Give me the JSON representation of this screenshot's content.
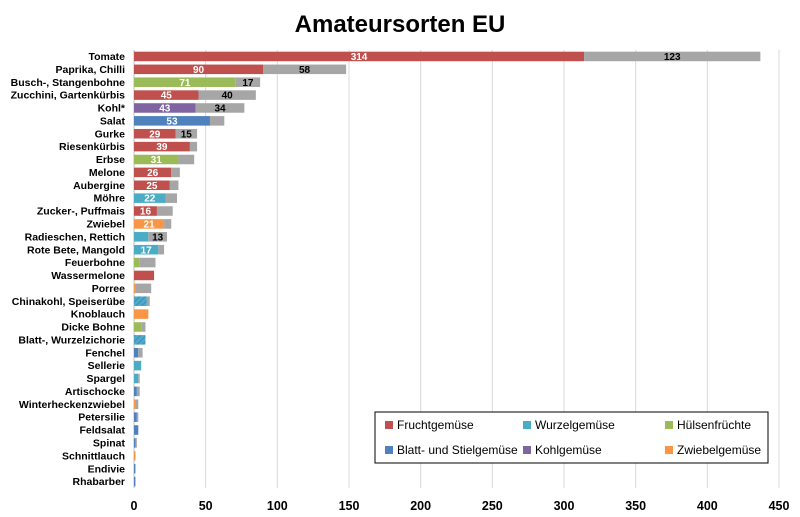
{
  "chart_data": {
    "type": "bar",
    "orientation": "horizontal",
    "stacked": true,
    "title": "Amateursorten EU",
    "xlim": [
      0,
      450
    ],
    "x_ticks": [
      0,
      50,
      100,
      150,
      200,
      250,
      300,
      350,
      400,
      450
    ],
    "grid": "vertical",
    "legend": {
      "position": "bottom-right",
      "entries": [
        {
          "name": "Fruchtgemüse",
          "color": "#c0504d"
        },
        {
          "name": "Wurzelgemüse",
          "color": "#4bacc6"
        },
        {
          "name": "Hülsenfrüchte",
          "color": "#9bbb59"
        },
        {
          "name": "Blatt- und Stielgemüse",
          "color": "#4f81bd"
        },
        {
          "name": "Kohlgemüse",
          "color": "#8064a2"
        },
        {
          "name": "Zwiebelgemüse",
          "color": "#f79646"
        }
      ]
    },
    "remainder_color": "#a6a6a6",
    "categories": [
      {
        "name": "Tomate",
        "group": "Fruchtgemüse",
        "value": 314,
        "remainder": 123,
        "label": "314",
        "remainder_label": "123"
      },
      {
        "name": "Paprika, Chilli",
        "group": "Fruchtgemüse",
        "value": 90,
        "remainder": 58,
        "label": "90",
        "remainder_label": "58"
      },
      {
        "name": "Busch-, Stangenbohne",
        "group": "Hülsenfrüchte",
        "value": 71,
        "remainder": 17,
        "label": "71",
        "remainder_label": "17"
      },
      {
        "name": "Zucchini, Gartenkürbis",
        "group": "Fruchtgemüse",
        "value": 45,
        "remainder": 40,
        "label": "45",
        "remainder_label": "40"
      },
      {
        "name": "Kohl*",
        "group": "Kohlgemüse",
        "value": 43,
        "remainder": 34,
        "label": "43",
        "remainder_label": "34"
      },
      {
        "name": "Salat",
        "group": "Blatt- und Stielgemüse",
        "value": 53,
        "remainder": 10,
        "label": "53",
        "remainder_label": ""
      },
      {
        "name": "Gurke",
        "group": "Fruchtgemüse",
        "value": 29,
        "remainder": 15,
        "label": "29",
        "remainder_label": "15"
      },
      {
        "name": "Riesenkürbis",
        "group": "Fruchtgemüse",
        "value": 39,
        "remainder": 5,
        "label": "39",
        "remainder_label": ""
      },
      {
        "name": "Erbse",
        "group": "Hülsenfrüchte",
        "value": 31,
        "remainder": 11,
        "label": "31",
        "remainder_label": ""
      },
      {
        "name": "Melone",
        "group": "Fruchtgemüse",
        "value": 26,
        "remainder": 6,
        "label": "26",
        "remainder_label": ""
      },
      {
        "name": "Aubergine",
        "group": "Fruchtgemüse",
        "value": 25,
        "remainder": 6,
        "label": "25",
        "remainder_label": ""
      },
      {
        "name": "Möhre",
        "group": "Wurzelgemüse",
        "value": 22,
        "remainder": 8,
        "label": "22",
        "remainder_label": ""
      },
      {
        "name": "Zucker-, Puffmais",
        "group": "Fruchtgemüse",
        "value": 16,
        "remainder": 11,
        "label": "16",
        "remainder_label": ""
      },
      {
        "name": "Zwiebel",
        "group": "Zwiebelgemüse",
        "value": 21,
        "remainder": 5,
        "label": "21",
        "remainder_label": ""
      },
      {
        "name": "Radieschen, Rettich",
        "group": "Wurzelgemüse",
        "value": 10,
        "remainder": 13,
        "label": "",
        "remainder_label": "13"
      },
      {
        "name": "Rote Bete, Mangold",
        "group": "Wurzelgemüse",
        "value": 17,
        "remainder": 4,
        "label": "17",
        "remainder_label": ""
      },
      {
        "name": "Feuerbohne",
        "group": "Hülsenfrüchte",
        "value": 4,
        "remainder": 11,
        "label": "",
        "remainder_label": ""
      },
      {
        "name": "Wassermelone",
        "group": "Fruchtgemüse",
        "value": 14,
        "remainder": 0,
        "label": "",
        "remainder_label": ""
      },
      {
        "name": "Porree",
        "group": "Zwiebelgemüse",
        "value": 1,
        "remainder": 11,
        "label": "",
        "remainder_label": ""
      },
      {
        "name": "Chinakohl, Speiserübe",
        "group": "Wurzelgemüse",
        "value": 9,
        "remainder": 2,
        "label": "",
        "remainder_label": ""
      },
      {
        "name": "Knoblauch",
        "group": "Zwiebelgemüse",
        "value": 10,
        "remainder": 0,
        "label": "",
        "remainder_label": ""
      },
      {
        "name": "Dicke Bohne",
        "group": "Hülsenfrüchte",
        "value": 5,
        "remainder": 3,
        "label": "",
        "remainder_label": ""
      },
      {
        "name": "Blatt-, Wurzelzichorie",
        "group": "Wurzelgemüse",
        "value": 8,
        "remainder": 0,
        "label": "",
        "remainder_label": ""
      },
      {
        "name": "Fenchel",
        "group": "Blatt- und Stielgemüse",
        "value": 3,
        "remainder": 3,
        "label": "",
        "remainder_label": ""
      },
      {
        "name": "Sellerie",
        "group": "Wurzelgemüse",
        "value": 5,
        "remainder": 0,
        "label": "",
        "remainder_label": ""
      },
      {
        "name": "Spargel",
        "group": "Wurzelgemüse",
        "value": 3,
        "remainder": 1,
        "label": "",
        "remainder_label": ""
      },
      {
        "name": "Artischocke",
        "group": "Blatt- und Stielgemüse",
        "value": 2,
        "remainder": 2,
        "label": "",
        "remainder_label": ""
      },
      {
        "name": "Winterheckenzwiebel",
        "group": "Zwiebelgemüse",
        "value": 1,
        "remainder": 2,
        "label": "",
        "remainder_label": ""
      },
      {
        "name": "Petersilie",
        "group": "Blatt- und Stielgemüse",
        "value": 2,
        "remainder": 1,
        "label": "",
        "remainder_label": ""
      },
      {
        "name": "Feldsalat",
        "group": "Blatt- und Stielgemüse",
        "value": 3,
        "remainder": 0,
        "label": "",
        "remainder_label": ""
      },
      {
        "name": "Spinat",
        "group": "Blatt- und Stielgemüse",
        "value": 1,
        "remainder": 1,
        "label": "",
        "remainder_label": ""
      },
      {
        "name": "Schnittlauch",
        "group": "Zwiebelgemüse",
        "value": 1,
        "remainder": 0,
        "label": "",
        "remainder_label": ""
      },
      {
        "name": "Endivie",
        "group": "Blatt- und Stielgemüse",
        "value": 1,
        "remainder": 0,
        "label": "",
        "remainder_label": ""
      },
      {
        "name": "Rhabarber",
        "group": "Blatt- und Stielgemüse",
        "value": 1,
        "remainder": 0,
        "label": "",
        "remainder_label": ""
      }
    ]
  }
}
